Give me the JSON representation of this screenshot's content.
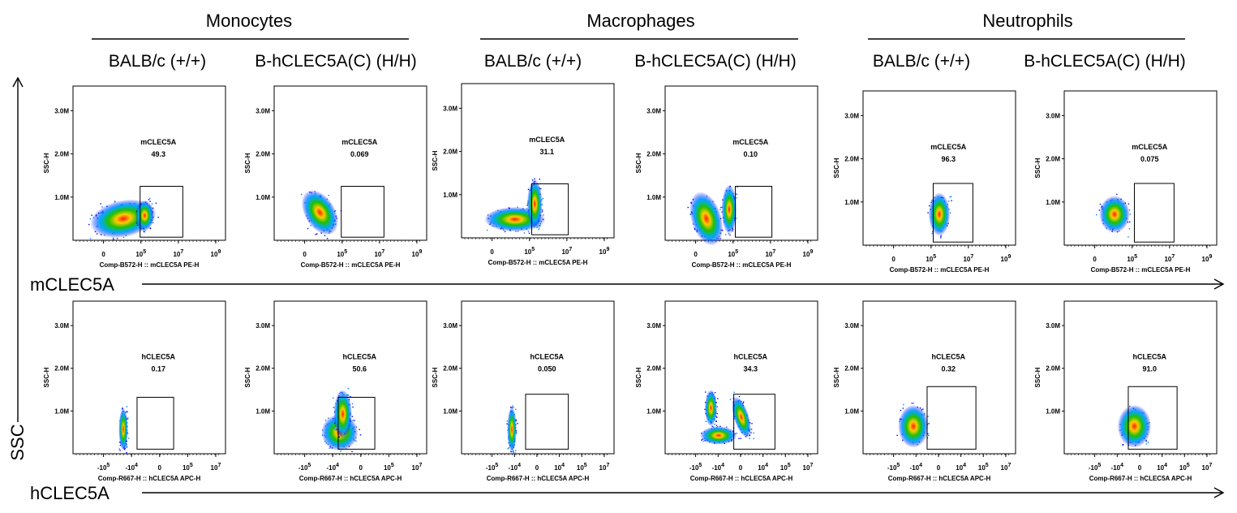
{
  "groups": [
    {
      "label": "Monocytes"
    },
    {
      "label": "Macrophages"
    },
    {
      "label": "Neutrophils"
    }
  ],
  "strains": [
    "BALB/c (+/+)",
    "B-hCLEC5A(C) (H/H)",
    "BALB/c (+/+)",
    "B-hCLEC5A(C) (H/H)",
    "BALB/c (+/+)",
    "B-hCLEC5A(C) (H/H)"
  ],
  "axes": {
    "vertical": "SSC",
    "row_labels": [
      "mCLEC5A",
      "hCLEC5A"
    ]
  },
  "colors": {
    "density_low": "#0000ff",
    "density_mid": "#00c000",
    "density_high": "#ff0000"
  },
  "chart_data": [
    {
      "type": "scatter",
      "row": 0,
      "group": "Monocytes",
      "strain": "BALB/c (+/+)",
      "gate_label": "mCLEC5A",
      "gate_value": "49.3",
      "ylabel": "SSC-H",
      "xlabel": "Comp-B572-H :: mCLEC5A PE-H",
      "yticks": [
        "1.0M",
        "2.0M",
        "3.0M"
      ],
      "xticks": [
        "0",
        "10^5",
        "10^7",
        "10^9"
      ]
    },
    {
      "type": "scatter",
      "row": 0,
      "group": "Monocytes",
      "strain": "B-hCLEC5A(C) (H/H)",
      "gate_label": "mCLEC5A",
      "gate_value": "0.069",
      "ylabel": "SSC-H",
      "xlabel": "Comp-B572-H :: mCLEC5A PE-H",
      "yticks": [
        "1.0M",
        "2.0M",
        "3.0M"
      ],
      "xticks": [
        "0",
        "10^5",
        "10^7",
        "10^9"
      ]
    },
    {
      "type": "scatter",
      "row": 0,
      "group": "Macrophages",
      "strain": "BALB/c (+/+)",
      "gate_label": "mCLEC5A",
      "gate_value": "31.1",
      "ylabel": "SSC-H",
      "xlabel": "Comp-B572-H :: mCLEC5A PE-H",
      "yticks": [
        "1.0M",
        "2.0M",
        "3.0M"
      ],
      "xticks": [
        "0",
        "10^5",
        "10^7",
        "10^9"
      ]
    },
    {
      "type": "scatter",
      "row": 0,
      "group": "Macrophages",
      "strain": "B-hCLEC5A(C) (H/H)",
      "gate_label": "mCLEC5A",
      "gate_value": "0.10",
      "ylabel": "SSC-H",
      "xlabel": "Comp-B572-H :: mCLEC5A PE-H",
      "yticks": [
        "1.0M",
        "2.0M",
        "3.0M"
      ],
      "xticks": [
        "0",
        "10^5",
        "10^7",
        "10^9"
      ]
    },
    {
      "type": "scatter",
      "row": 0,
      "group": "Neutrophils",
      "strain": "BALB/c (+/+)",
      "gate_label": "mCLEC5A",
      "gate_value": "96.3",
      "ylabel": "SSC-H",
      "xlabel": "Comp-B572-H :: mCLEC5A PE-H",
      "yticks": [
        "1.0M",
        "2.0M",
        "3.0M"
      ],
      "xticks": [
        "0",
        "10^5",
        "10^7",
        "10^9"
      ]
    },
    {
      "type": "scatter",
      "row": 0,
      "group": "Neutrophils",
      "strain": "B-hCLEC5A(C) (H/H)",
      "gate_label": "mCLEC5A",
      "gate_value": "0.075",
      "ylabel": "SSC-H",
      "xlabel": "Comp-B572-H :: mCLEC5A PE-H",
      "yticks": [
        "1.0M",
        "2.0M",
        "3.0M"
      ],
      "xticks": [
        "0",
        "10^5",
        "10^7",
        "10^9"
      ]
    },
    {
      "type": "scatter",
      "row": 1,
      "group": "Monocytes",
      "strain": "BALB/c (+/+)",
      "gate_label": "hCLEC5A",
      "gate_value": "0.17",
      "ylabel": "SSC-H",
      "xlabel": "Comp-R667-H :: hCLEC5A APC-H",
      "yticks": [
        "1.0M",
        "2.0M",
        "3.0M"
      ],
      "xticks": [
        "-10^5",
        "-10^4",
        "0",
        "10^5",
        "10^7"
      ]
    },
    {
      "type": "scatter",
      "row": 1,
      "group": "Monocytes",
      "strain": "B-hCLEC5A(C) (H/H)",
      "gate_label": "hCLEC5A",
      "gate_value": "50.6",
      "ylabel": "SSC-H",
      "xlabel": "Comp-R667-H :: hCLEC5A APC-H",
      "yticks": [
        "1.0M",
        "2.0M",
        "3.0M"
      ],
      "xticks": [
        "-10^5",
        "-10^4",
        "0",
        "10^5",
        "10^7"
      ]
    },
    {
      "type": "scatter",
      "row": 1,
      "group": "Macrophages",
      "strain": "BALB/c (+/+)",
      "gate_label": "hCLEC5A",
      "gate_value": "0.050",
      "ylabel": "SSC-H",
      "xlabel": "Comp-R667-H :: hCLEC5A APC-H",
      "yticks": [
        "1.0M",
        "2.0M",
        "3.0M"
      ],
      "xticks": [
        "-10^5",
        "-10^4",
        "0",
        "10^4",
        "10^5",
        "10^7"
      ]
    },
    {
      "type": "scatter",
      "row": 1,
      "group": "Macrophages",
      "strain": "B-hCLEC5A(C) (H/H)",
      "gate_label": "hCLEC5A",
      "gate_value": "34.3",
      "ylabel": "SSC-H",
      "xlabel": "Comp-R667-H :: hCLEC5A APC-H",
      "yticks": [
        "1.0M",
        "2.0M",
        "3.0M"
      ],
      "xticks": [
        "-10^5",
        "-10^4",
        "0",
        "10^4",
        "10^5",
        "10^7"
      ]
    },
    {
      "type": "scatter",
      "row": 1,
      "group": "Neutrophils",
      "strain": "BALB/c (+/+)",
      "gate_label": "hCLEC5A",
      "gate_value": "0.32",
      "ylabel": "SSC-H",
      "xlabel": "Comp-R667-H :: hCLEC5A APC-H",
      "yticks": [
        "1.0M",
        "2.0M",
        "3.0M"
      ],
      "xticks": [
        "-10^5",
        "-10^4",
        "0",
        "10^4",
        "10^5",
        "10^7"
      ]
    },
    {
      "type": "scatter",
      "row": 1,
      "group": "Neutrophils",
      "strain": "B-hCLEC5A(C) (H/H)",
      "gate_label": "hCLEC5A",
      "gate_value": "91.0",
      "ylabel": "SSC-H",
      "xlabel": "Comp-R667-H :: hCLEC5A APC-H",
      "yticks": [
        "1.0M",
        "2.0M",
        "3.0M"
      ],
      "xticks": [
        "-10^5",
        "-10^4",
        "0",
        "10^4",
        "10^5",
        "10^7"
      ]
    }
  ]
}
